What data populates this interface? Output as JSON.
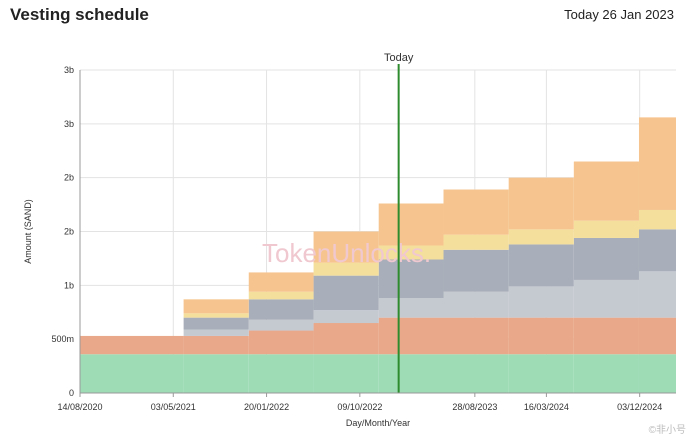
{
  "header": {
    "title": "Vesting schedule",
    "date": "Today 26 Jan 2023"
  },
  "watermark": "TokenUnlocks.",
  "corner_watermark": "©非小号",
  "chart_data": {
    "type": "area",
    "title": "Vesting schedule",
    "xlabel": "Day/Month/Year",
    "ylabel": "Amount (SAND)",
    "x_ticks": [
      "14/08/2020",
      "03/05/2021",
      "20/01/2022",
      "09/10/2022",
      "28/08/2023",
      "16/03/2024",
      "03/12/2024"
    ],
    "y_ticks": [
      "0",
      "500m",
      "1b",
      "2b",
      "2b",
      "3b",
      "3b"
    ],
    "y_tick_values": [
      0,
      500,
      1000,
      1500,
      2000,
      2500,
      3000
    ],
    "ylim": [
      0,
      3000
    ],
    "today_label": "Today",
    "today_date": "26/01/2023",
    "step_dates": [
      "14/08/2020",
      "01/06/2021",
      "01/12/2021",
      "01/06/2022",
      "01/12/2022",
      "01/06/2023",
      "01/12/2023",
      "01/06/2024",
      "01/12/2024",
      "15/03/2025"
    ],
    "stacked": true,
    "series": [
      {
        "name": "",
        "color": "#9edcb6",
        "values": [
          360,
          360,
          360,
          360,
          360,
          360,
          360,
          360,
          360
        ]
      },
      {
        "name": "",
        "color": "#e9a889",
        "values": [
          170,
          170,
          220,
          290,
          340,
          340,
          340,
          340,
          340
        ]
      },
      {
        "name": "",
        "color": "#c5c9d0",
        "values": [
          0,
          60,
          100,
          120,
          180,
          240,
          290,
          350,
          430
        ]
      },
      {
        "name": "",
        "color": "#a9afba",
        "values": [
          0,
          110,
          190,
          320,
          360,
          390,
          390,
          390,
          390
        ]
      },
      {
        "name": "",
        "color": "#f5df9c",
        "values": [
          0,
          40,
          70,
          120,
          130,
          140,
          140,
          160,
          180
        ]
      },
      {
        "name": "",
        "color": "#f6c58f",
        "values": [
          0,
          130,
          180,
          290,
          390,
          420,
          480,
          550,
          860
        ]
      }
    ],
    "grid": true,
    "legend": "none"
  }
}
